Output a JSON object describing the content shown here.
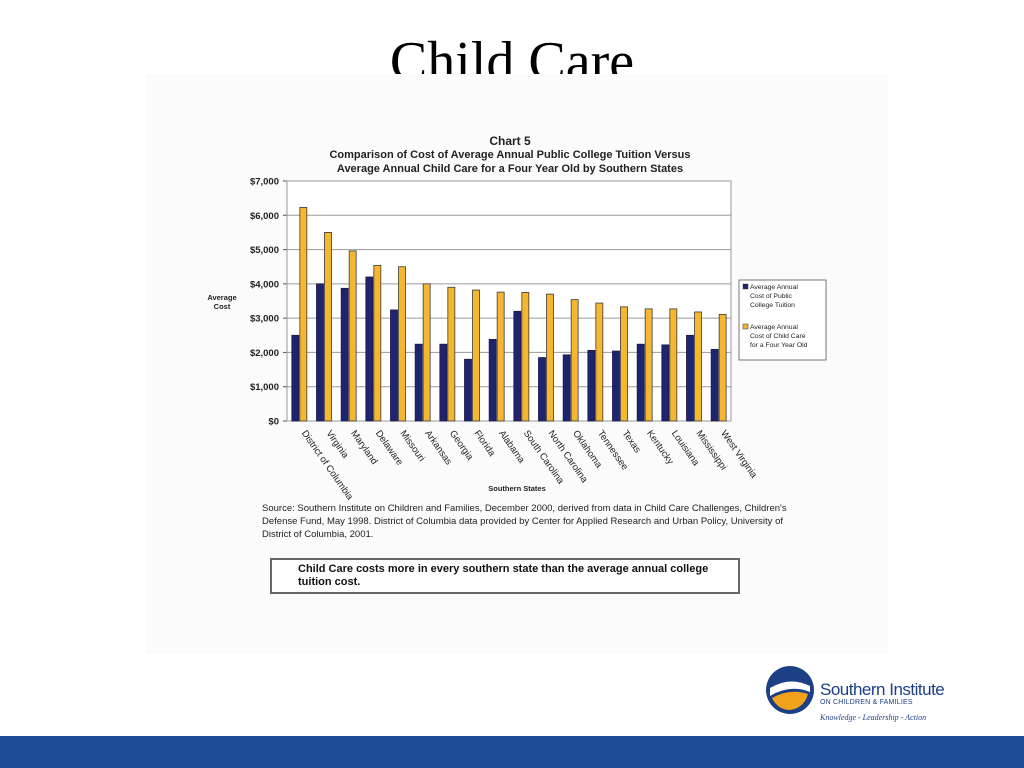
{
  "slide": {
    "title": "Child Care"
  },
  "chart_data": {
    "type": "bar",
    "chart_number": "Chart 5",
    "title": "Comparison of Cost of Average Annual Public College Tuition Versus Average Annual Child Care for a Four Year Old by Southern States",
    "title_lines": [
      "Comparison of Cost of Average Annual Public College Tuition Versus",
      "Average Annual Child Care for a Four Year Old by Southern States"
    ],
    "xlabel": "Southern States",
    "ylabel_lines": [
      "Average",
      "Cost"
    ],
    "ylim": [
      0,
      7000
    ],
    "yticks": [
      0,
      1000,
      2000,
      3000,
      4000,
      5000,
      6000,
      7000
    ],
    "ytick_labels": [
      "$0",
      "$1,000",
      "$2,000",
      "$3,000",
      "$4,000",
      "$5,000",
      "$6,000",
      "$7,000"
    ],
    "grid": true,
    "legend_position": "right",
    "categories": [
      "District of Columbia",
      "Virginia",
      "Maryland",
      "Delaware",
      "Missouri",
      "Arkansas",
      "Georgia",
      "Florida",
      "Alabama",
      "South Carolina",
      "North Carolina",
      "Oklahoma",
      "Tennessee",
      "Texas",
      "Kentucky",
      "Louisiana",
      "Mississippi",
      "West Virginia"
    ],
    "series": [
      {
        "name": "Average Annual Cost of Public College Tuition",
        "legend_lines": [
          "Average Annual",
          "Cost of Public",
          "College Tuition"
        ],
        "color": "#1f2470",
        "values": [
          2500,
          4000,
          3870,
          4200,
          3240,
          2240,
          2240,
          1800,
          2380,
          3200,
          1850,
          1930,
          2060,
          2040,
          2240,
          2220,
          2500,
          2090
        ]
      },
      {
        "name": "Average Annual Cost of Child Care for a Four Year Old",
        "legend_lines": [
          "Average Annual",
          "Cost of Child Care",
          "for a Four Year Old"
        ],
        "color": "#f5b730",
        "values": [
          6230,
          5500,
          4960,
          4540,
          4500,
          4000,
          3900,
          3820,
          3760,
          3750,
          3700,
          3540,
          3440,
          3330,
          3270,
          3270,
          3180,
          3110
        ]
      }
    ]
  },
  "source_text": "Source: Southern Institute on Children and Families, December 2000, derived from data in Child Care Challenges, Children's Defense Fund, May 1998. District of Columbia data provided by Center for Applied Research and Urban Policy, University of District of Columbia, 2001.",
  "note_text": "Child Care costs more in every southern state than the average annual college tuition cost.",
  "logo": {
    "name": "Southern Institute",
    "subtitle": "ON CHILDREN & FAMILIES",
    "tagline": "Knowledge - Leadership - Action",
    "colors": {
      "blue": "#1d3f86",
      "orange": "#f0a21a"
    }
  },
  "footer": {
    "color": "#1e4d98"
  }
}
